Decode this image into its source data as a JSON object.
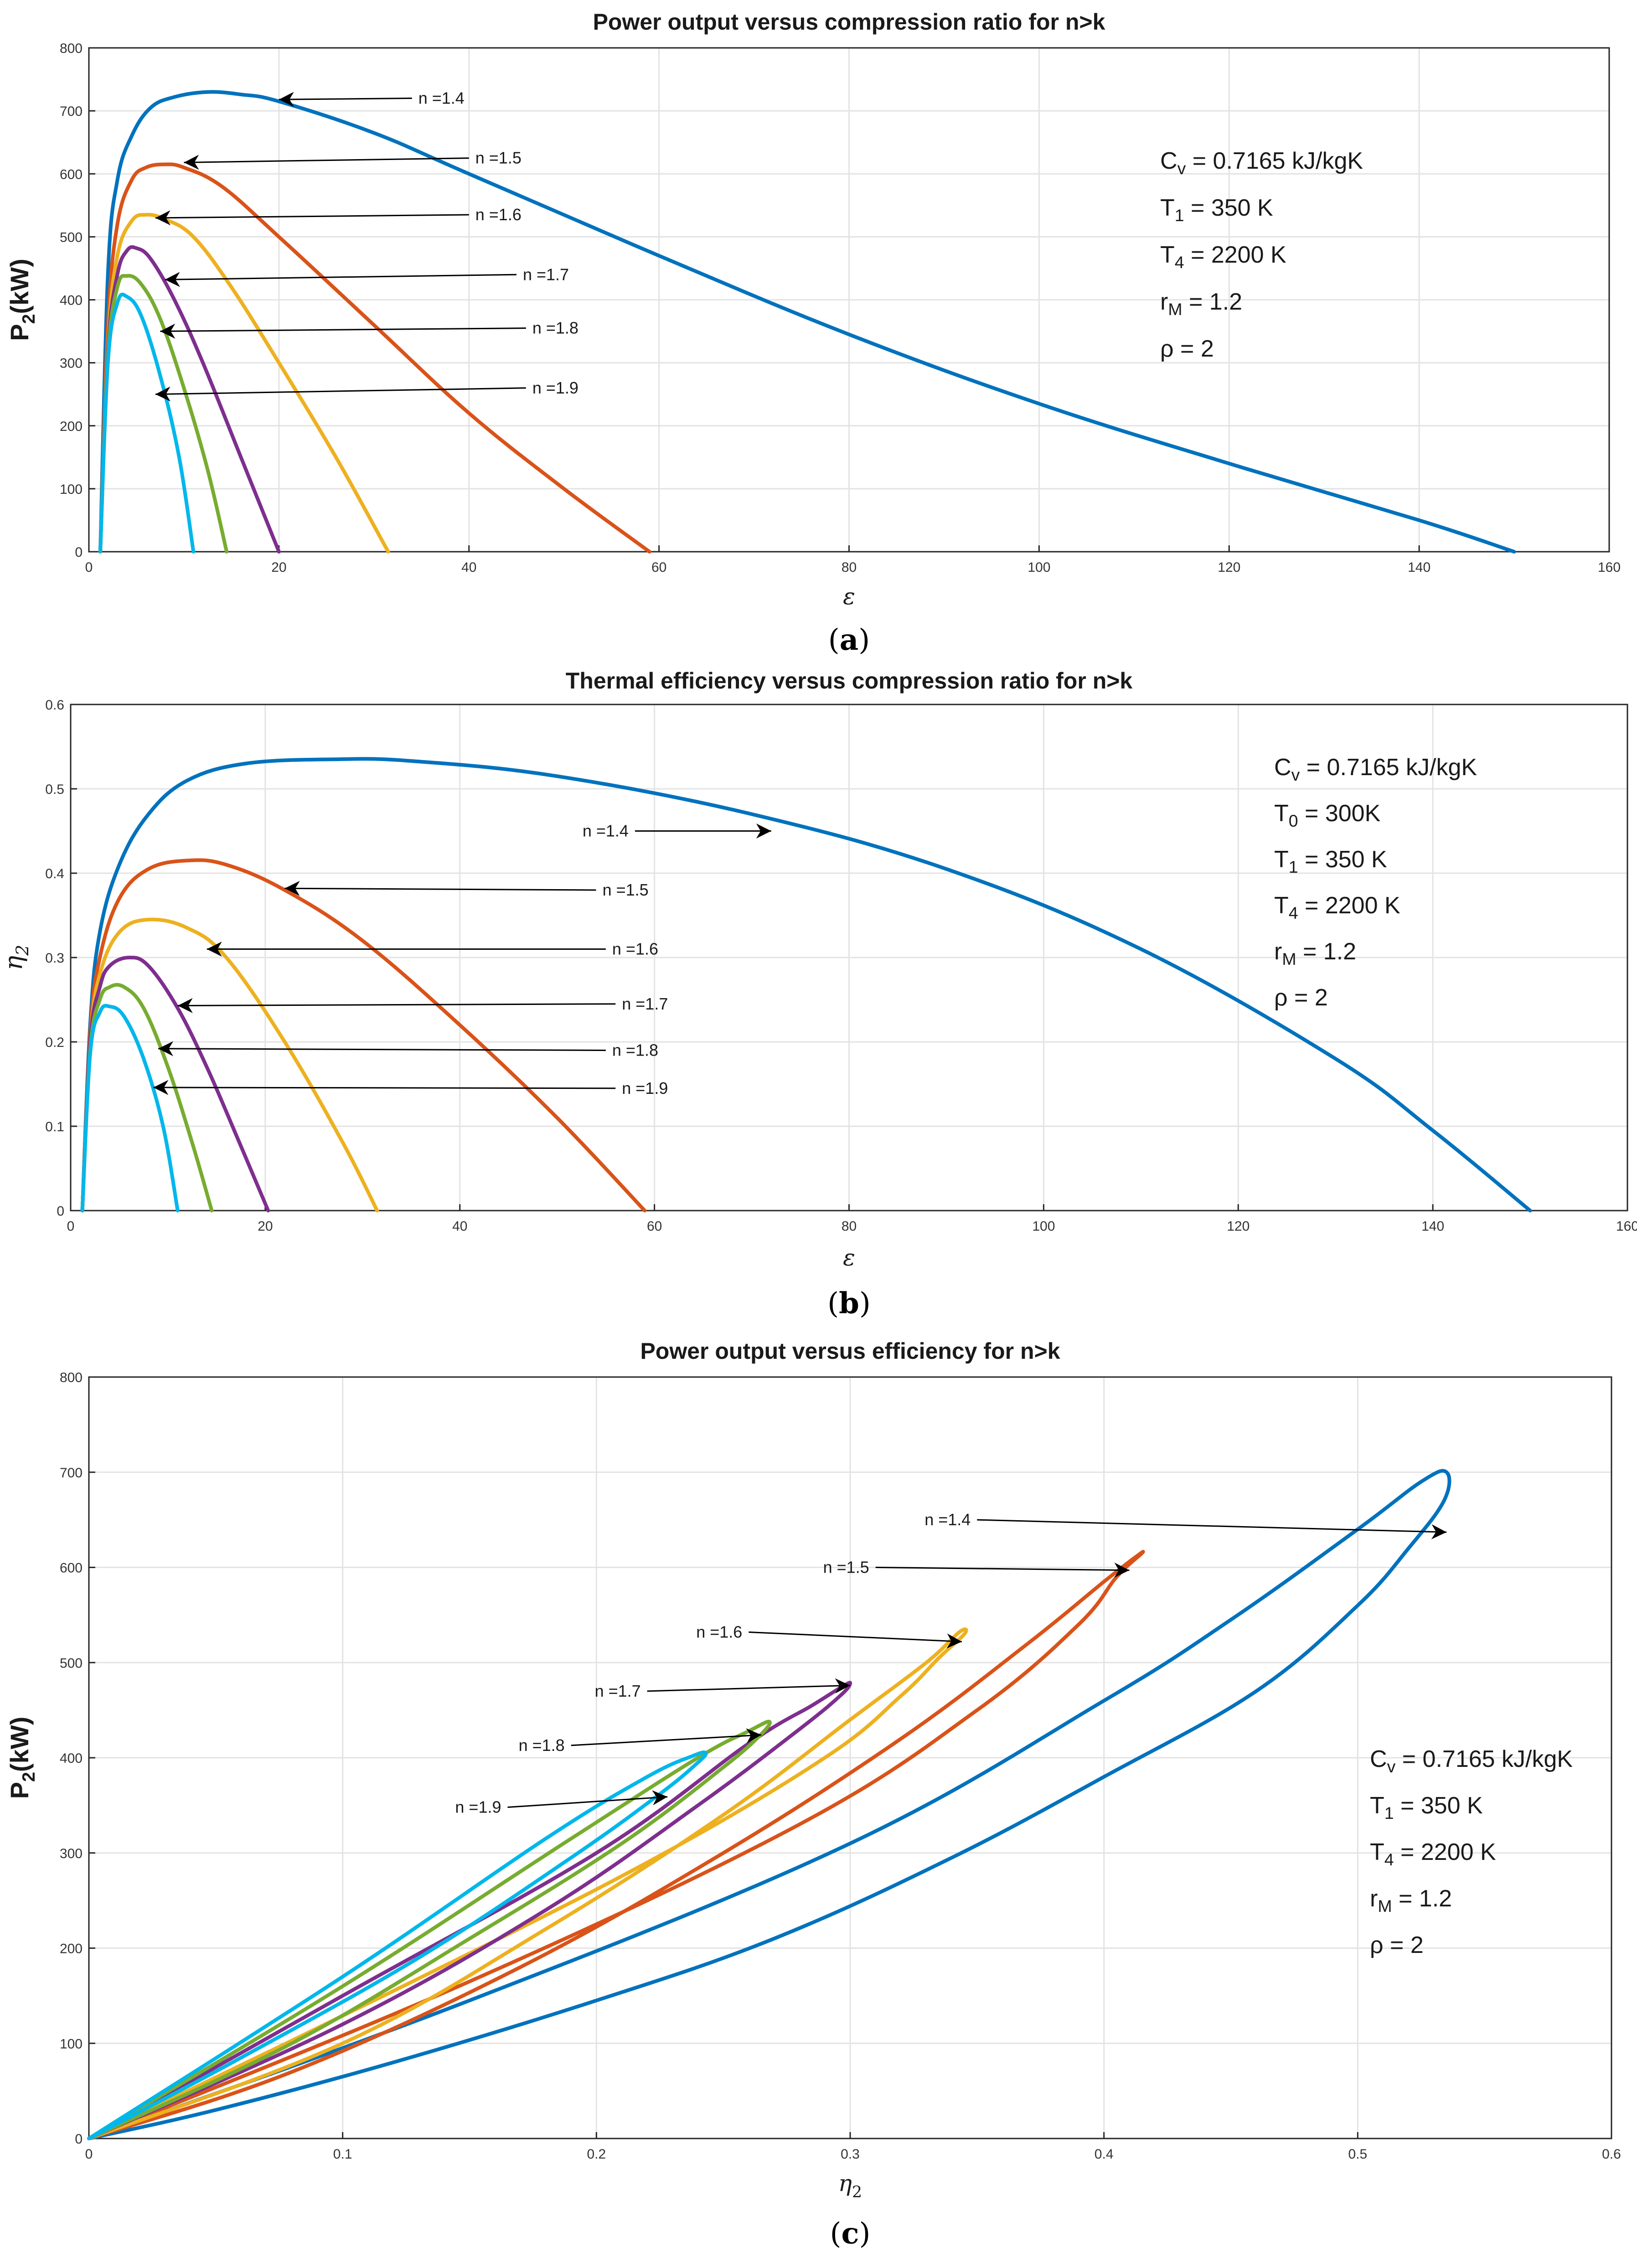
{
  "colors": {
    "n14": "#0072BD",
    "n15": "#D95319",
    "n16": "#EDB120",
    "n17": "#7E2F8E",
    "n18": "#77AC30",
    "n19": "#00B7EB"
  },
  "chart_data": [
    {
      "panel_label": "a",
      "type": "line",
      "title": "Power output versus compression ratio for n>k",
      "xlabel": "ε",
      "ylabel": "P2(kW)",
      "xlim": [
        0,
        160
      ],
      "ylim": [
        0,
        800
      ],
      "xticks": [
        0,
        20,
        40,
        60,
        80,
        100,
        120,
        140,
        160
      ],
      "yticks": [
        0,
        100,
        200,
        300,
        400,
        500,
        600,
        700,
        800
      ],
      "grid": true,
      "series": [
        {
          "name": "n =1.4",
          "color_key": "n14",
          "x": [
            1.2,
            2,
            3,
            4.5,
            6.5,
            9,
            12.5,
            16,
            20,
            30,
            40,
            60,
            80,
            100,
            120,
            140,
            150
          ],
          "y": [
            0,
            440,
            590,
            660,
            705,
            722,
            730,
            726,
            715,
            665,
            600,
            470,
            345,
            235,
            140,
            50,
            0
          ]
        },
        {
          "name": "n =1.5",
          "color_key": "n15",
          "x": [
            1.2,
            2,
            3,
            4.5,
            6,
            8,
            10,
            14,
            20,
            30,
            40,
            50,
            59
          ],
          "y": [
            0,
            360,
            520,
            590,
            610,
            615,
            610,
            580,
            500,
            360,
            220,
            100,
            0
          ]
        },
        {
          "name": "n =1.6",
          "color_key": "n16",
          "x": [
            1.2,
            2,
            3,
            4.5,
            6,
            8,
            11,
            15,
            20,
            26,
            31.5
          ],
          "y": [
            0,
            330,
            470,
            525,
            535,
            528,
            500,
            420,
            300,
            150,
            0
          ]
        },
        {
          "name": "n =1.7",
          "color_key": "n17",
          "x": [
            1.2,
            2,
            3,
            4,
            5,
            6.5,
            9,
            12,
            16,
            20
          ],
          "y": [
            0,
            320,
            440,
            478,
            482,
            465,
            400,
            300,
            150,
            0
          ]
        },
        {
          "name": "n =1.8",
          "color_key": "n18",
          "x": [
            1.2,
            2,
            3,
            4,
            5.5,
            7.5,
            10,
            12.5,
            14.5
          ],
          "y": [
            0,
            310,
            420,
            438,
            425,
            370,
            260,
            130,
            0
          ]
        },
        {
          "name": "n =1.9",
          "color_key": "n19",
          "x": [
            1.2,
            2,
            3,
            4,
            5.5,
            7.5,
            9.5,
            11
          ],
          "y": [
            0,
            300,
            395,
            405,
            375,
            280,
            150,
            0
          ]
        }
      ],
      "annotations": [
        {
          "text": "n =1.4",
          "xy": [
            20,
            718
          ],
          "xytext": [
            34,
            720
          ],
          "side": "right"
        },
        {
          "text": "n =1.5",
          "xy": [
            10,
            618
          ],
          "xytext": [
            40,
            625
          ],
          "side": "right"
        },
        {
          "text": "n =1.6",
          "xy": [
            7,
            530
          ],
          "xytext": [
            40,
            535
          ],
          "side": "right"
        },
        {
          "text": "n =1.7",
          "xy": [
            8,
            432
          ],
          "xytext": [
            45,
            440
          ],
          "side": "right"
        },
        {
          "text": "n =1.8",
          "xy": [
            7.5,
            350
          ],
          "xytext": [
            46,
            355
          ],
          "side": "right"
        },
        {
          "text": "n =1.9",
          "xy": [
            7,
            250
          ],
          "xytext": [
            46,
            260
          ],
          "side": "right"
        }
      ],
      "params": [
        "C_v = 0.7165 kJ/kgK",
        "T_1 = 350 K",
        "T_4 = 2200 K",
        "r_M = 1.2",
        "ρ = 2"
      ]
    },
    {
      "panel_label": "b",
      "type": "line",
      "title": "Thermal efficiency versus compression ratio for n>k",
      "xlabel": "ε",
      "ylabel": "η2",
      "xlim": [
        0,
        160
      ],
      "ylim": [
        0,
        0.6
      ],
      "xticks": [
        0,
        20,
        40,
        60,
        80,
        100,
        120,
        140,
        160
      ],
      "yticks": [
        0,
        0.1,
        0.2,
        0.3,
        0.4,
        0.5,
        0.6
      ],
      "grid": true,
      "series": [
        {
          "name": "n =1.4",
          "color_key": "n14",
          "x": [
            1.2,
            2,
            3,
            5,
            8,
            12,
            18,
            27,
            35,
            50,
            70,
            90,
            110,
            130,
            140,
            150
          ],
          "y": [
            0,
            0.22,
            0.33,
            0.41,
            0.47,
            0.51,
            0.53,
            0.535,
            0.533,
            0.515,
            0.47,
            0.405,
            0.31,
            0.18,
            0.095,
            0
          ]
        },
        {
          "name": "n =1.5",
          "color_key": "n15",
          "x": [
            1.2,
            2,
            3,
            5,
            8,
            12,
            16,
            22,
            30,
            40,
            50,
            59
          ],
          "y": [
            0,
            0.21,
            0.3,
            0.37,
            0.405,
            0.415,
            0.41,
            0.38,
            0.32,
            0.22,
            0.11,
            0
          ]
        },
        {
          "name": "n =1.6",
          "color_key": "n16",
          "x": [
            1.2,
            2,
            3,
            5,
            8,
            12,
            16,
            22,
            28,
            31.5
          ],
          "y": [
            0,
            0.2,
            0.28,
            0.33,
            0.345,
            0.335,
            0.3,
            0.2,
            0.08,
            0
          ]
        },
        {
          "name": "n =1.7",
          "color_key": "n17",
          "x": [
            1.2,
            2,
            3,
            4,
            6,
            8,
            11,
            14,
            17,
            20.3
          ],
          "y": [
            0,
            0.2,
            0.265,
            0.29,
            0.3,
            0.29,
            0.24,
            0.17,
            0.09,
            0
          ]
        },
        {
          "name": "n =1.8",
          "color_key": "n18",
          "x": [
            1.2,
            2,
            3,
            4,
            5.5,
            7.5,
            10,
            12.5,
            14.5
          ],
          "y": [
            0,
            0.19,
            0.25,
            0.265,
            0.265,
            0.24,
            0.17,
            0.08,
            0
          ]
        },
        {
          "name": "n =1.9",
          "color_key": "n19",
          "x": [
            1.2,
            2,
            3,
            4,
            5.5,
            7.5,
            9.5,
            11
          ],
          "y": [
            0,
            0.185,
            0.235,
            0.242,
            0.23,
            0.18,
            0.1,
            0
          ]
        }
      ],
      "annotations": [
        {
          "text": "n =1.4",
          "xy": [
            72,
            0.45
          ],
          "xytext": [
            58,
            0.45
          ],
          "side": "left"
        },
        {
          "text": "n =1.5",
          "xy": [
            22,
            0.382
          ],
          "xytext": [
            54,
            0.38
          ],
          "side": "right"
        },
        {
          "text": "n =1.6",
          "xy": [
            14,
            0.31
          ],
          "xytext": [
            55,
            0.31
          ],
          "side": "right"
        },
        {
          "text": "n =1.7",
          "xy": [
            11,
            0.243
          ],
          "xytext": [
            56,
            0.245
          ],
          "side": "right"
        },
        {
          "text": "n =1.8",
          "xy": [
            9,
            0.192
          ],
          "xytext": [
            55,
            0.19
          ],
          "side": "right"
        },
        {
          "text": "n =1.9",
          "xy": [
            8.5,
            0.146
          ],
          "xytext": [
            56,
            0.145
          ],
          "side": "right"
        }
      ],
      "params": [
        "C_v = 0.7165 kJ/kgK",
        "T_0 = 300K",
        "T_1 = 350 K",
        "T_4 = 2200 K",
        "r_M = 1.2",
        "ρ = 2"
      ]
    },
    {
      "panel_label": "c",
      "type": "line",
      "title": "Power output versus efficiency for n>k",
      "xlabel": "η2",
      "ylabel": "P2(kW)",
      "xlim": [
        0,
        0.6
      ],
      "ylim": [
        0,
        800
      ],
      "xticks": [
        0,
        0.1,
        0.2,
        0.3,
        0.4,
        0.5,
        0.6
      ],
      "yticks": [
        0,
        100,
        200,
        300,
        400,
        500,
        600,
        700,
        800
      ],
      "grid": true,
      "series": [
        {
          "name": "n =1.4",
          "color_key": "n14",
          "x": [
            0,
            0.15,
            0.3,
            0.4,
            0.45,
            0.5,
            0.525,
            0.535,
            0.534,
            0.52,
            0.5,
            0.46,
            0.4,
            0.34,
            0.27,
            0.2,
            0.12,
            0.05,
            0
          ],
          "y": [
            0,
            145,
            310,
            460,
            545,
            640,
            690,
            700,
            670,
            620,
            560,
            470,
            380,
            295,
            210,
            145,
            80,
            30,
            0
          ]
        },
        {
          "name": "n =1.5",
          "color_key": "n15",
          "x": [
            0,
            0.15,
            0.28,
            0.35,
            0.39,
            0.405,
            0.415,
            0.412,
            0.4,
            0.37,
            0.32,
            0.25,
            0.17,
            0.08,
            0
          ],
          "y": [
            0,
            165,
            330,
            450,
            540,
            590,
            615,
            610,
            585,
            520,
            420,
            300,
            180,
            70,
            0
          ]
        },
        {
          "name": "n =1.6",
          "color_key": "n16",
          "x": [
            0,
            0.12,
            0.22,
            0.29,
            0.32,
            0.335,
            0.345,
            0.343,
            0.33,
            0.3,
            0.25,
            0.18,
            0.1,
            0
          ],
          "y": [
            0,
            155,
            290,
            400,
            465,
            505,
            530,
            532,
            500,
            440,
            340,
            220,
            100,
            0
          ]
        },
        {
          "name": "n =1.7",
          "color_key": "n17",
          "x": [
            0,
            0.1,
            0.2,
            0.26,
            0.285,
            0.297,
            0.3,
            0.296,
            0.28,
            0.24,
            0.18,
            0.1,
            0
          ],
          "y": [
            0,
            150,
            300,
            415,
            455,
            475,
            478,
            465,
            430,
            350,
            240,
            120,
            0
          ]
        },
        {
          "name": "n =1.8",
          "color_key": "n18",
          "x": [
            0,
            0.1,
            0.19,
            0.24,
            0.26,
            0.268,
            0.265,
            0.25,
            0.21,
            0.15,
            0.08,
            0
          ],
          "y": [
            0,
            160,
            315,
            400,
            428,
            438,
            425,
            390,
            310,
            210,
            100,
            0
          ]
        },
        {
          "name": "n =1.9",
          "color_key": "n19",
          "x": [
            0,
            0.1,
            0.18,
            0.22,
            0.238,
            0.243,
            0.24,
            0.225,
            0.19,
            0.13,
            0.06,
            0
          ],
          "y": [
            0,
            170,
            315,
            380,
            402,
            405,
            395,
            362,
            295,
            190,
            85,
            0
          ]
        }
      ],
      "annotations": [
        {
          "text": "n =1.4",
          "xy": [
            0.535,
            637
          ],
          "xytext": [
            0.35,
            650
          ],
          "side": "left"
        },
        {
          "text": "n =1.5",
          "xy": [
            0.41,
            597
          ],
          "xytext": [
            0.31,
            600
          ],
          "side": "left"
        },
        {
          "text": "n =1.6",
          "xy": [
            0.344,
            522
          ],
          "xytext": [
            0.26,
            532
          ],
          "side": "left"
        },
        {
          "text": "n =1.7",
          "xy": [
            0.3,
            476
          ],
          "xytext": [
            0.22,
            470
          ],
          "side": "left"
        },
        {
          "text": "n =1.8",
          "xy": [
            0.265,
            424
          ],
          "xytext": [
            0.19,
            413
          ],
          "side": "left"
        },
        {
          "text": "n =1.9",
          "xy": [
            0.228,
            359
          ],
          "xytext": [
            0.165,
            348
          ],
          "side": "left"
        }
      ],
      "params": [
        "C_v = 0.7165 kJ/kgK",
        "T_1 = 350 K",
        "T_4 = 2200 K",
        "r_M = 1.2",
        "ρ = 2"
      ]
    }
  ]
}
